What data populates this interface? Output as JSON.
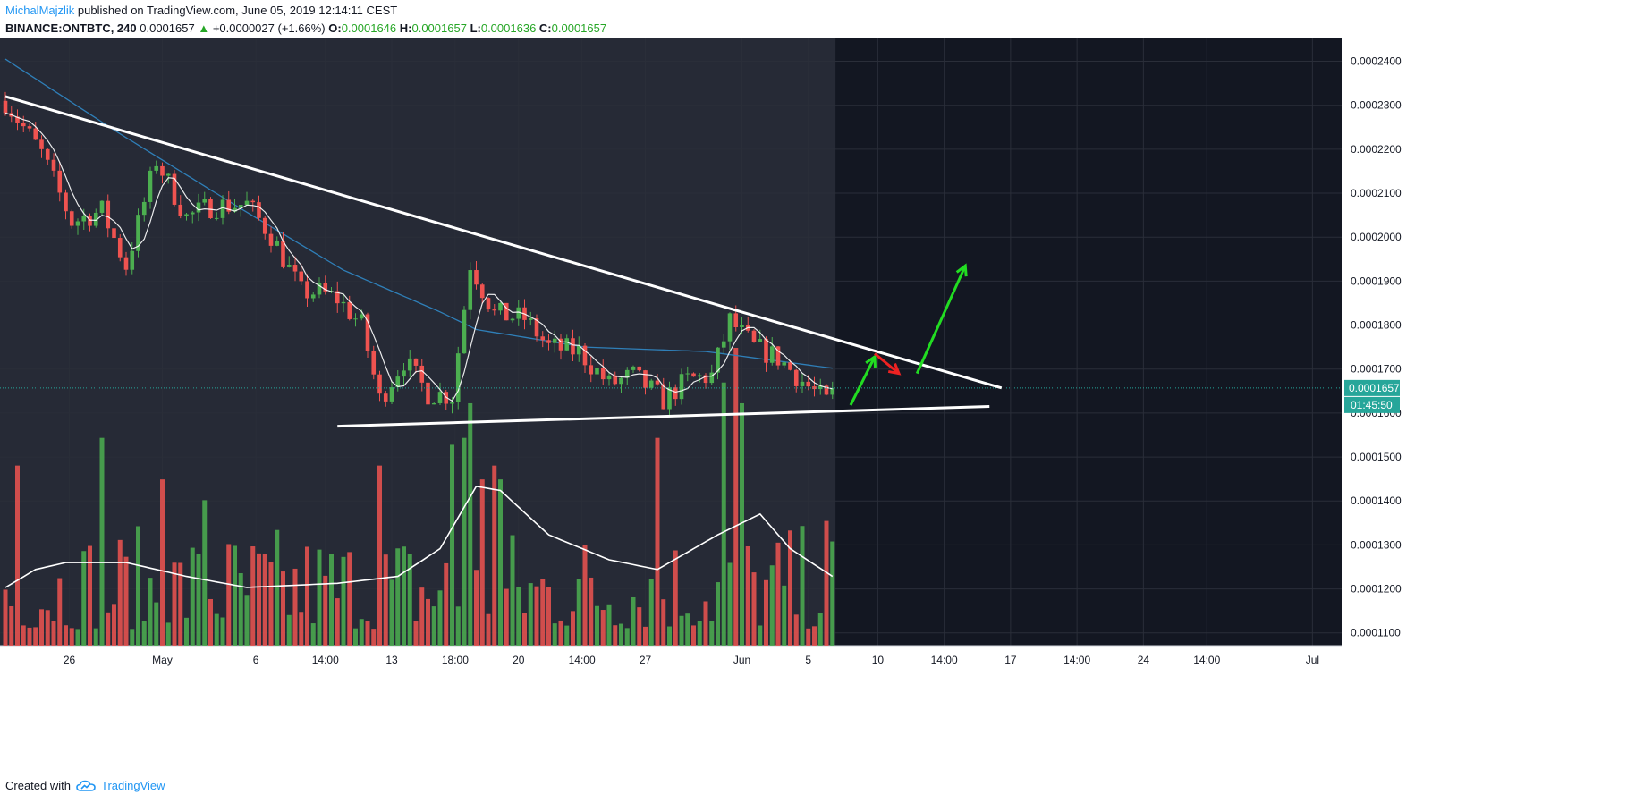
{
  "header": {
    "author": "MichalMajzlik",
    "published": "published on TradingView.com, June 05, 2019 12:14:11 CEST",
    "symbol": "BINANCE:ONTBTC, 240",
    "last": "0.0001657",
    "change_arrow": "▲",
    "change": "+0.0000027 (+1.66%)",
    "o_label": "O:",
    "o": "0.0001646",
    "h_label": "H:",
    "h": "0.0001657",
    "l_label": "L:",
    "l": "0.0001636",
    "c_label": "C:",
    "c": "0.0001657"
  },
  "footer": {
    "created_with": "Created with",
    "brand": "TradingView",
    "logo_icon": "tradingview-cloud-icon"
  },
  "colors": {
    "background": "#131722",
    "history_shade": "#262a36",
    "grid": "#2a2e39",
    "up": "#4caf50",
    "down": "#ef5350",
    "ma_long": "#2f7fb8",
    "ma_short": "#ffffff",
    "trendline": "#ffffff",
    "arrow_up": "#22dd22",
    "arrow_down": "#ee2222",
    "price_tag": "#26a69a"
  },
  "chart_data": {
    "type": "candlestick",
    "x_tick_labels": [
      "26",
      "May",
      "6",
      "14:00",
      "13",
      "18:00",
      "20",
      "14:00",
      "27",
      "Jun",
      "5",
      "10",
      "14:00",
      "17",
      "14:00",
      "24",
      "14:00",
      "Jul"
    ],
    "y_tick_labels": [
      "0.0002400",
      "0.0002300",
      "0.0002200",
      "0.0002100",
      "0.0002000",
      "0.0001900",
      "0.0001800",
      "0.0001700",
      "0.0001600",
      "0.0001500",
      "0.0001400",
      "0.0001300",
      "0.0001200",
      "0.0001100"
    ],
    "ylim": [
      0.0001071,
      0.0002454
    ],
    "current_price_label": "0.0001657",
    "countdown_label": "01:45:50",
    "close_path": [
      [
        0,
        0.000231
      ],
      [
        6,
        0.000219
      ],
      [
        11,
        0.0002035
      ],
      [
        16,
        0.000206
      ],
      [
        20,
        0.0001935
      ],
      [
        25,
        0.0002175
      ],
      [
        30,
        0.0002045
      ],
      [
        34,
        0.000207
      ],
      [
        40,
        0.0002075
      ],
      [
        44,
        0.0002005
      ],
      [
        49,
        0.0001875
      ],
      [
        52,
        0.0001875
      ],
      [
        55,
        0.000186
      ],
      [
        59,
        0.00018
      ],
      [
        62,
        0.000163
      ],
      [
        66,
        0.000172
      ],
      [
        70,
        0.0001645
      ],
      [
        74,
        0.000164
      ],
      [
        77,
        0.000194
      ],
      [
        81,
        0.0001825
      ],
      [
        86,
        0.0001815
      ],
      [
        90,
        0.000175
      ],
      [
        95,
        0.000174
      ],
      [
        100,
        0.0001665
      ],
      [
        104,
        0.0001685
      ],
      [
        109,
        0.000163
      ],
      [
        113,
        0.0001675
      ],
      [
        117,
        0.0001685
      ],
      [
        120,
        0.000181
      ],
      [
        124,
        0.000175
      ],
      [
        128,
        0.0001725
      ],
      [
        133,
        0.000166
      ],
      [
        136,
        0.0001625
      ],
      [
        137,
        0.0001657
      ]
    ],
    "series": [
      {
        "name": "",
        "type": "line",
        "points": [
          [
            0,
            0.0002405
          ],
          [
            19,
            0.0002235
          ],
          [
            39,
            0.0002065
          ],
          [
            56,
            0.0001925
          ],
          [
            72,
            0.000183
          ],
          [
            78,
            0.000179
          ],
          [
            96,
            0.000175
          ],
          [
            116,
            0.000174
          ],
          [
            137,
            0.0001702
          ]
        ]
      },
      {
        "name": "",
        "type": "line",
        "smoothing": 5
      }
    ],
    "volume": {
      "baseline": 0.0001071,
      "scale": 3.15e-05,
      "spikes": [
        [
          2,
          1.3
        ],
        [
          16,
          1.5
        ],
        [
          26,
          1.2
        ],
        [
          33,
          1.05
        ],
        [
          62,
          1.3
        ],
        [
          74,
          1.45
        ],
        [
          76,
          1.5
        ],
        [
          77,
          1.75
        ],
        [
          79,
          1.2
        ],
        [
          81,
          1.3
        ],
        [
          82,
          1.2
        ],
        [
          108,
          1.5
        ],
        [
          119,
          1.9
        ],
        [
          121,
          2.15
        ],
        [
          122,
          1.75
        ],
        [
          136,
          0.9
        ]
      ],
      "average_line": [
        [
          0,
          0.42
        ],
        [
          5,
          0.55
        ],
        [
          10,
          0.6
        ],
        [
          20,
          0.6
        ],
        [
          30,
          0.5
        ],
        [
          40,
          0.42
        ],
        [
          55,
          0.45
        ],
        [
          65,
          0.5
        ],
        [
          72,
          0.7
        ],
        [
          78,
          1.15
        ],
        [
          82,
          1.12
        ],
        [
          90,
          0.8
        ],
        [
          100,
          0.62
        ],
        [
          108,
          0.55
        ],
        [
          118,
          0.8
        ],
        [
          125,
          0.95
        ],
        [
          130,
          0.7
        ],
        [
          137,
          0.5
        ]
      ]
    },
    "annotations": {
      "upper_trendline": {
        "from": [
          0,
          0.000232
        ],
        "to": [
          165,
          0.0001657
        ]
      },
      "lower_trendline": {
        "from": [
          55,
          0.000157
        ],
        "to": [
          163,
          0.0001615
        ]
      },
      "arrows": [
        {
          "color": "up",
          "from": [
            140,
            0.0001618
          ],
          "to": [
            144,
            0.0001728
          ]
        },
        {
          "color": "down",
          "from": [
            144,
            0.0001735
          ],
          "to": [
            148,
            0.000169
          ]
        },
        {
          "color": "up",
          "from": [
            151,
            0.000169
          ],
          "to": [
            159,
            0.0001935
          ]
        }
      ]
    }
  }
}
